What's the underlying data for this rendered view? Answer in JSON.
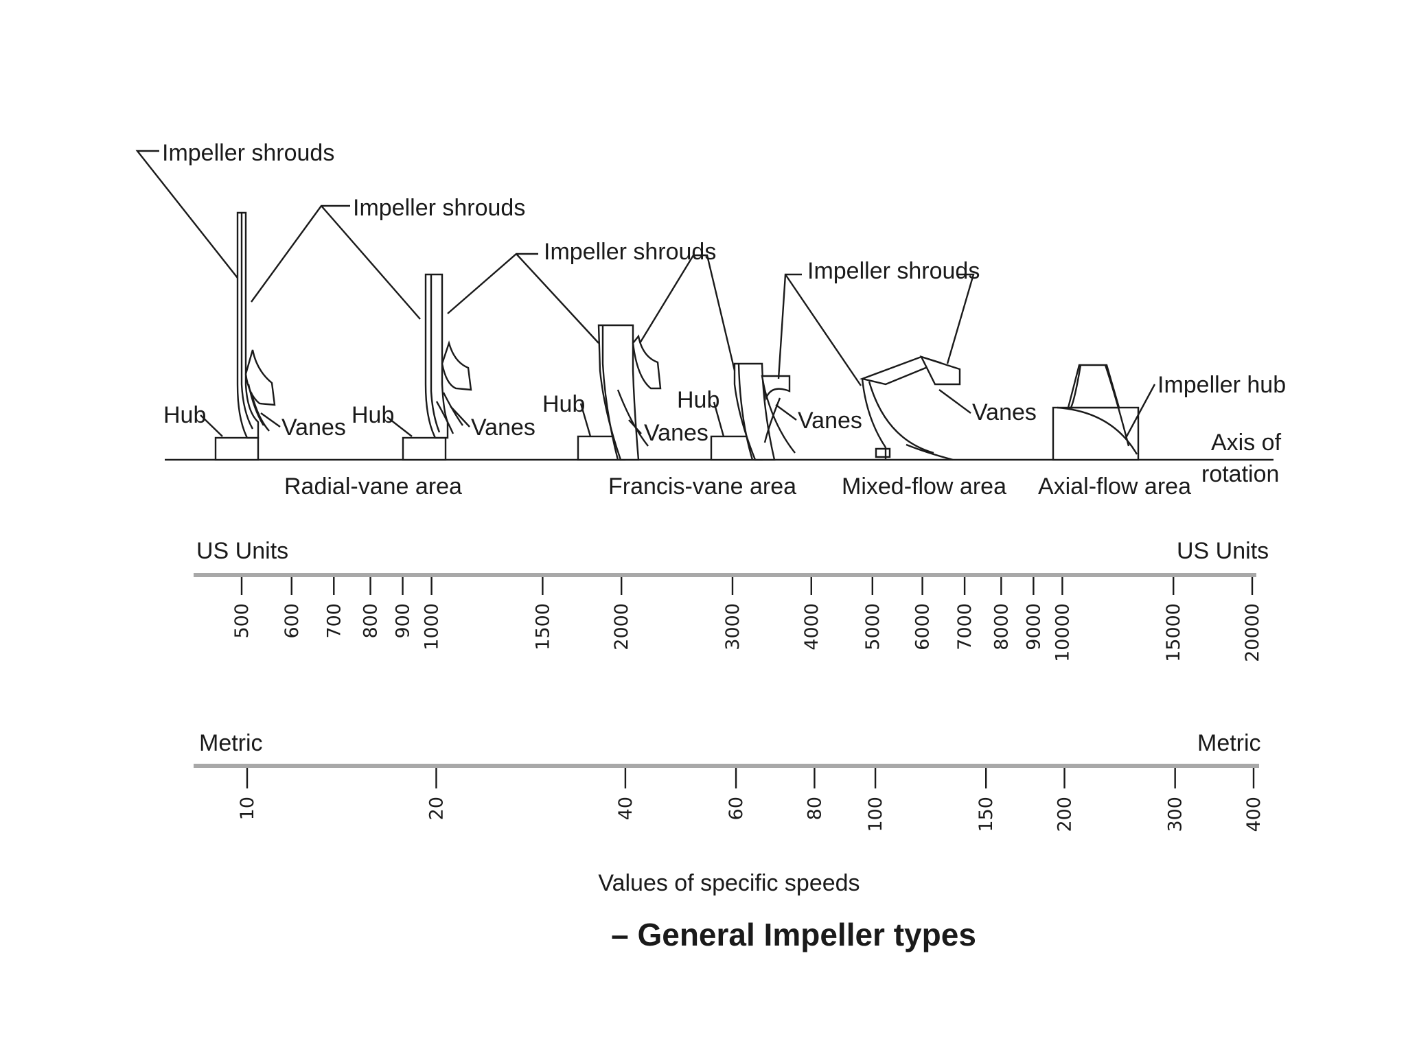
{
  "labels": {
    "shrouds_1": "Impeller shrouds",
    "shrouds_2": "Impeller shrouds",
    "shrouds_3": "Impeller shrouds",
    "shrouds_4": "Impeller shrouds",
    "hub_1": "Hub",
    "hub_2": "Hub",
    "hub_3": "Hub",
    "hub_4": "Hub",
    "vanes_1": "Vanes",
    "vanes_2": "Vanes",
    "vanes_3": "Vanes",
    "vanes_4": "Vanes",
    "vanes_5": "Vanes",
    "impeller_hub": "Impeller hub",
    "axis_line1": "Axis of",
    "axis_line2": "rotation"
  },
  "areas": {
    "radial": "Radial-vane area",
    "francis": "Francis-vane area",
    "mixed": "Mixed-flow area",
    "axial": "Axial-flow area"
  },
  "us_scale": {
    "label_left": "US Units",
    "label_right": "US Units",
    "ticks": [
      "500",
      "600",
      "700",
      "800",
      "900",
      "1000",
      "1500",
      "2000",
      "3000",
      "4000",
      "5000",
      "6000",
      "7000",
      "8000",
      "9000",
      "10000",
      "15000",
      "20000"
    ]
  },
  "metric_scale": {
    "label_left": "Metric",
    "label_right": "Metric",
    "ticks": [
      "10",
      "20",
      "40",
      "60",
      "80",
      "100",
      "150",
      "200",
      "300",
      "400"
    ]
  },
  "caption": "Values of specific speeds",
  "title": "– General Impeller types"
}
